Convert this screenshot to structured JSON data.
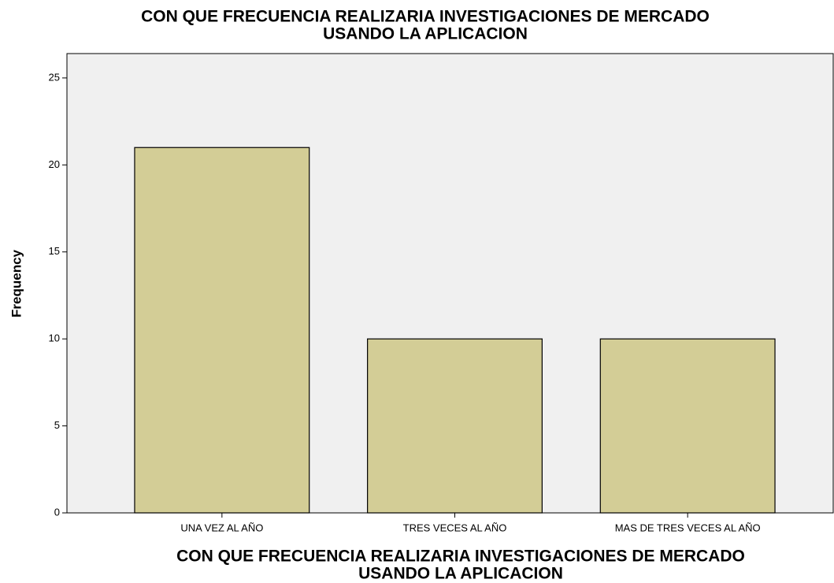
{
  "chart_data": {
    "type": "bar",
    "title": [
      "CON QUE FRECUENCIA REALIZARIA INVESTIGACIONES DE MERCADO",
      "USANDO LA APLICACION"
    ],
    "x_label": [
      "CON QUE FRECUENCIA REALIZARIA INVESTIGACIONES DE MERCADO",
      "USANDO LA APLICACION"
    ],
    "y_label": "Frequency",
    "categories": [
      "UNA VEZ AL AÑO",
      "TRES VECES AL AÑO",
      "MAS DE TRES VECES AL AÑO"
    ],
    "values": [
      21,
      10,
      10
    ],
    "color": "#d3cd96",
    "ylim": [
      0,
      26.4
    ],
    "yticks": [
      0,
      5,
      10,
      15,
      20,
      25
    ],
    "grid": false
  }
}
